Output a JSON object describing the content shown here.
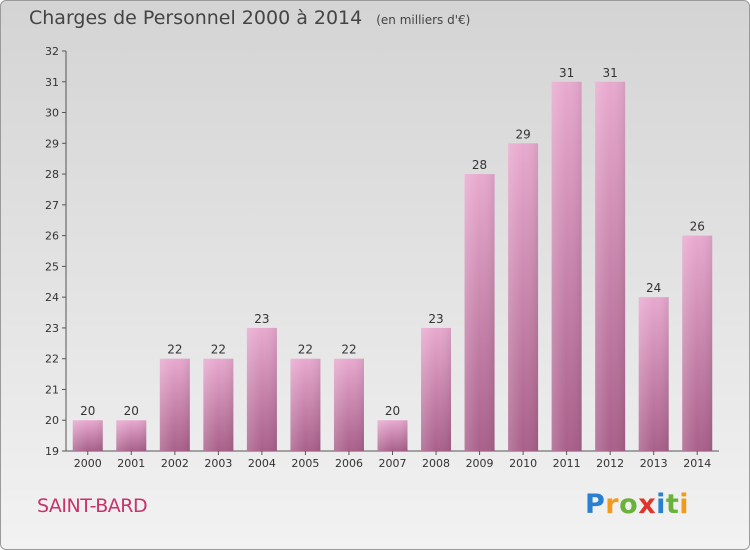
{
  "chart_data": {
    "type": "bar",
    "title": "Charges de Personnel 2000 à 2014",
    "subtitle": "(en milliers d'€)",
    "xlabel": "",
    "ylabel": "",
    "categories": [
      "2000",
      "2001",
      "2002",
      "2003",
      "2004",
      "2005",
      "2006",
      "2007",
      "2008",
      "2009",
      "2010",
      "2011",
      "2012",
      "2013",
      "2014"
    ],
    "values": [
      20,
      20,
      22,
      22,
      23,
      22,
      22,
      20,
      23,
      28,
      29,
      31,
      31,
      24,
      26
    ],
    "ylim": [
      19,
      32
    ],
    "yticks": [
      "19",
      "20",
      "21",
      "22",
      "23",
      "24",
      "25",
      "26",
      "27",
      "28",
      "29",
      "30",
      "31",
      "32"
    ],
    "grid": false,
    "legend": "none",
    "bar_color": "#c873a4"
  },
  "footer": {
    "commune": "SAINT-BARD",
    "logo": [
      "P",
      "r",
      "o",
      "x",
      "i",
      "t",
      "i"
    ]
  },
  "colors": {
    "commune": "#c8336b",
    "logo": [
      "#2a7fd0",
      "#f39a1b",
      "#69b33a",
      "#e0342a",
      "#2a7fd0",
      "#69b33a",
      "#f39a1b"
    ]
  }
}
